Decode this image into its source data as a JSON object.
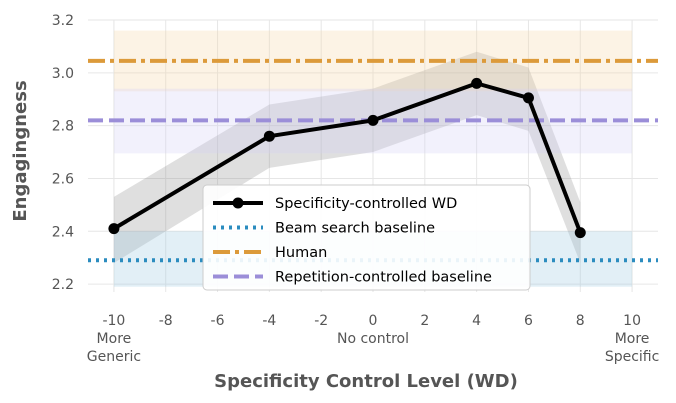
{
  "chart_data": {
    "type": "line",
    "xlabel": "Specificity Control Level (WD)",
    "ylabel": "Engagingness",
    "xlim": [
      -11,
      11
    ],
    "ylim": [
      2.17,
      3.2
    ],
    "x_ticks": [
      -10,
      -8,
      -6,
      -4,
      -2,
      0,
      2,
      4,
      6,
      8,
      10
    ],
    "x_tick_labels": [
      "-10",
      "-8",
      "-6",
      "-4",
      "-2",
      "0",
      "2",
      "4",
      "6",
      "8",
      "10"
    ],
    "y_ticks": [
      2.2,
      2.4,
      2.6,
      2.8,
      3.0,
      3.2
    ],
    "y_tick_labels": [
      "2.2",
      "2.4",
      "2.6",
      "2.8",
      "3.0",
      "3.2"
    ],
    "annotations": [
      {
        "x": -10,
        "lines": [
          "More",
          "Generic"
        ]
      },
      {
        "x": 0,
        "lines": [
          "No control"
        ]
      },
      {
        "x": 10,
        "lines": [
          "More",
          "Specific"
        ]
      }
    ],
    "grid": true,
    "legend_position": "lower center",
    "series": [
      {
        "name": "Specificity-controlled WD",
        "style": "solid-marker",
        "color": "#000000",
        "x": [
          -10,
          -4,
          0,
          4,
          6,
          8
        ],
        "y": [
          2.41,
          2.76,
          2.82,
          2.96,
          2.905,
          2.395
        ],
        "ci_low": [
          2.28,
          2.64,
          2.7,
          2.84,
          2.78,
          2.28
        ],
        "ci_high": [
          2.53,
          2.88,
          2.94,
          3.08,
          3.02,
          2.51
        ],
        "band_color": "#808080"
      },
      {
        "name": "Beam search baseline",
        "style": "dotted",
        "color": "#2b8cbf",
        "y": 2.29,
        "band": [
          2.19,
          2.4
        ],
        "band_color": "#9ecae1"
      },
      {
        "name": "Human",
        "style": "dashdot",
        "color": "#dc9a3a",
        "y": 3.045,
        "band": [
          2.93,
          3.16
        ],
        "band_color": "#f5d6a8"
      },
      {
        "name": "Repetition-controlled baseline",
        "style": "dashed",
        "color": "#9b8ed8",
        "y": 2.82,
        "band": [
          2.695,
          2.94
        ],
        "band_color": "#d4d0f5"
      }
    ]
  }
}
